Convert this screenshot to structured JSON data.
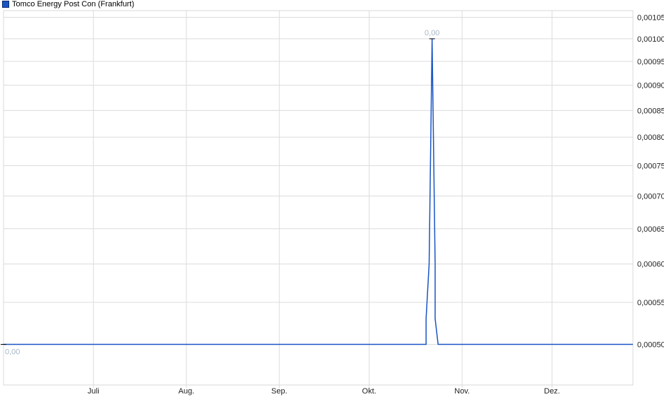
{
  "chart_data": {
    "type": "line",
    "title": "Tomco Energy Post Con (Frankfurt)",
    "legend": [
      {
        "name": "Tomco Energy Post Con (Frankfurt)",
        "color": "#1a55c5"
      }
    ],
    "legend_placement": "top-left",
    "x_ticks": [
      {
        "label": "Juli",
        "date": "07-01"
      },
      {
        "label": "Aug.",
        "date": "08-01"
      },
      {
        "label": "Sep.",
        "date": "09-01"
      },
      {
        "label": "Okt.",
        "date": "10-01"
      },
      {
        "label": "Nov.",
        "date": "11-01"
      },
      {
        "label": "Dez.",
        "date": "12-01"
      }
    ],
    "y_ticks": [
      "0,00050",
      "0,00055",
      "0,00060",
      "0,00065",
      "0,00070",
      "0,00075",
      "0,00080",
      "0,00085",
      "0,00090",
      "0,00095",
      "0,00100",
      "0,00105"
    ],
    "y_scale": "log",
    "y_range": [
      0.000456,
      0.001066
    ],
    "x_range": [
      "06-01",
      "12-28"
    ],
    "grid": true,
    "series": [
      {
        "color": "#1a55c5",
        "points": [
          {
            "date": "06-01",
            "value": 0.0005
          },
          {
            "date": "10-20",
            "value": 0.0005
          },
          {
            "date": "10-20",
            "value": 0.00053
          },
          {
            "date": "10-21",
            "value": 0.0006
          },
          {
            "date": "10-22",
            "value": 0.001
          },
          {
            "date": "10-23",
            "value": 0.0006
          },
          {
            "date": "10-23",
            "value": 0.00053
          },
          {
            "date": "10-24",
            "value": 0.0005
          },
          {
            "date": "12-28",
            "value": 0.0005
          }
        ]
      }
    ],
    "annotations": [
      {
        "text": "0,00",
        "date": "10-22",
        "value": 0.001,
        "kind": "max"
      },
      {
        "text": "0,00",
        "date": "06-01",
        "value": 0.0005,
        "kind": "min"
      }
    ]
  }
}
